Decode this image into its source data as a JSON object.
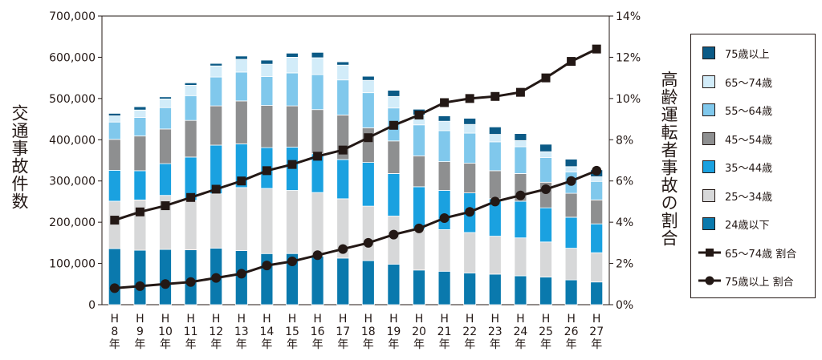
{
  "chart_data": {
    "type": "bar",
    "left_axis_label": "交通事故件数",
    "right_axis_label": "高齢運転者事故の割合",
    "left_ticks": [
      "0",
      "100,000",
      "200,000",
      "300,000",
      "400,000",
      "500,000",
      "600,000",
      "700,000"
    ],
    "right_ticks": [
      "0%",
      "2%",
      "4%",
      "6%",
      "8%",
      "10%",
      "12%",
      "14%"
    ],
    "ylim": [
      0,
      700000
    ],
    "y2lim": [
      0,
      14
    ],
    "categories": [
      "H 8 年",
      "H 9 年",
      "H 10 年",
      "H 11 年",
      "H 12 年",
      "H 13 年",
      "H 14 年",
      "H 15 年",
      "H 16 年",
      "H 17 年",
      "H 18 年",
      "H 19 年",
      "H 20 年",
      "H 21 年",
      "H 22 年",
      "H 23 年",
      "H 24 年",
      "H 25 年",
      "H 26 年",
      "H 27 年"
    ],
    "category_lines": [
      [
        "H",
        "8",
        "年"
      ],
      [
        "H",
        "9",
        "年"
      ],
      [
        "H",
        "10",
        "年"
      ],
      [
        "H",
        "11",
        "年"
      ],
      [
        "H",
        "12",
        "年"
      ],
      [
        "H",
        "13",
        "年"
      ],
      [
        "H",
        "14",
        "年"
      ],
      [
        "H",
        "15",
        "年"
      ],
      [
        "H",
        "16",
        "年"
      ],
      [
        "H",
        "17",
        "年"
      ],
      [
        "H",
        "18",
        "年"
      ],
      [
        "H",
        "19",
        "年"
      ],
      [
        "H",
        "20",
        "年"
      ],
      [
        "H",
        "21",
        "年"
      ],
      [
        "H",
        "22",
        "年"
      ],
      [
        "H",
        "23",
        "年"
      ],
      [
        "H",
        "24",
        "年"
      ],
      [
        "H",
        "25",
        "年"
      ],
      [
        "H",
        "26",
        "年"
      ],
      [
        "H",
        "27",
        "年"
      ]
    ],
    "stacked_series": [
      {
        "name": "24歳以下",
        "color": "#0a79ad",
        "values": [
          136000,
          132000,
          134000,
          133000,
          137000,
          131000,
          124000,
          124000,
          118000,
          113000,
          107000,
          98000,
          84000,
          81000,
          77000,
          74000,
          70000,
          67000,
          60000,
          55000
        ]
      },
      {
        "name": "25～34歳",
        "color": "#d7d8d9",
        "values": [
          115000,
          122000,
          131000,
          120000,
          132000,
          153000,
          158000,
          153000,
          154000,
          144000,
          132000,
          117000,
          99000,
          101000,
          98000,
          92000,
          92000,
          85000,
          77000,
          71000
        ]
      },
      {
        "name": "35～44歳",
        "color": "#1aa1e0",
        "values": [
          75000,
          71000,
          77000,
          105000,
          118000,
          106000,
          99000,
          105000,
          94000,
          95000,
          106000,
          103000,
          103000,
          95000,
          96000,
          91000,
          89000,
          83000,
          75000,
          70000
        ]
      },
      {
        "name": "45～54歳",
        "color": "#8e8f90",
        "values": [
          75000,
          84000,
          84000,
          89000,
          95000,
          104000,
          102000,
          100000,
          107000,
          108000,
          84000,
          79000,
          75000,
          70000,
          72000,
          68000,
          67000,
          62000,
          58000,
          58000
        ]
      },
      {
        "name": "55～64歳",
        "color": "#80c8ec",
        "values": [
          42000,
          45000,
          52000,
          60000,
          70000,
          70000,
          70000,
          80000,
          85000,
          85000,
          85000,
          80000,
          75000,
          75000,
          73000,
          70000,
          65000,
          60000,
          52000,
          45000
        ]
      },
      {
        "name": "65～74歳",
        "color": "#d2ecf9",
        "values": [
          15000,
          18000,
          21000,
          25000,
          27000,
          31000,
          30000,
          38000,
          41000,
          36000,
          30000,
          28000,
          24000,
          23000,
          21000,
          18000,
          15000,
          14000,
          13000,
          11000
        ]
      },
      {
        "name": "75歳以上",
        "color": "#0b5a86",
        "values": [
          6000,
          8000,
          5000,
          6000,
          6000,
          8000,
          10000,
          10000,
          13000,
          8000,
          10000,
          15000,
          14000,
          13000,
          15000,
          18000,
          17000,
          18000,
          18000,
          17000
        ]
      }
    ],
    "line_series": [
      {
        "name": "65～74歳 割合",
        "marker": "square",
        "values": [
          4.1,
          4.5,
          4.8,
          5.2,
          5.6,
          6.0,
          6.5,
          6.8,
          7.2,
          7.5,
          8.1,
          8.7,
          9.2,
          9.8,
          10.0,
          10.1,
          10.3,
          11.0,
          11.8,
          12.4
        ]
      },
      {
        "name": "75歳以上 割合",
        "marker": "circle",
        "values": [
          0.8,
          0.9,
          1.0,
          1.1,
          1.3,
          1.5,
          1.9,
          2.1,
          2.4,
          2.7,
          3.0,
          3.4,
          3.7,
          4.2,
          4.5,
          5.0,
          5.3,
          5.6,
          6.0,
          6.5
        ]
      }
    ],
    "line_color": "#231815",
    "legend": [
      {
        "label": "75歳以上",
        "kind": "box",
        "color": "#0b5a86"
      },
      {
        "label": "65～74歳",
        "kind": "box",
        "color": "#d2ecf9"
      },
      {
        "label": "55～64歳",
        "kind": "box",
        "color": "#80c8ec"
      },
      {
        "label": "45～54歳",
        "kind": "box",
        "color": "#8e8f90"
      },
      {
        "label": "35～44歳",
        "kind": "box",
        "color": "#1aa1e0"
      },
      {
        "label": "25～34歳",
        "kind": "box",
        "color": "#d7d8d9"
      },
      {
        "label": "24歳以下",
        "kind": "box",
        "color": "#0a79ad"
      },
      {
        "label": "65～74歳 割合",
        "kind": "line-square",
        "color": "#231815"
      },
      {
        "label": "75歳以上 割合",
        "kind": "line-circle",
        "color": "#231815"
      }
    ],
    "legend_position": "right"
  }
}
